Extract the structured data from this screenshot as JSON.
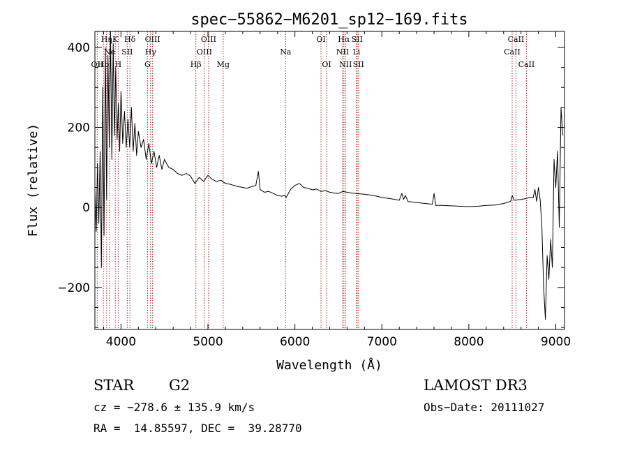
{
  "chart_data": {
    "type": "line",
    "title": "spec−55862−M6201_sp12−169.fits",
    "xlabel": "Wavelength (Å)",
    "ylabel": "Flux (relative)",
    "xlim": [
      3700,
      9100
    ],
    "ylim": [
      -305,
      440
    ],
    "xticks": [
      4000,
      5000,
      6000,
      7000,
      8000,
      9000
    ],
    "xtick_labels": [
      "4000",
      "5000",
      "6000",
      "7000",
      "8000",
      "9000"
    ],
    "yticks": [
      -200,
      0,
      200,
      400
    ],
    "ytick_labels": [
      "−200",
      "0",
      "200",
      "400"
    ],
    "series": [
      {
        "name": "flux",
        "x": [
          3700,
          3715,
          3730,
          3745,
          3760,
          3775,
          3790,
          3805,
          3820,
          3835,
          3850,
          3865,
          3880,
          3895,
          3910,
          3925,
          3940,
          3955,
          3970,
          3985,
          4000,
          4020,
          4040,
          4060,
          4080,
          4100,
          4120,
          4140,
          4160,
          4180,
          4200,
          4230,
          4260,
          4290,
          4320,
          4350,
          4380,
          4410,
          4440,
          4470,
          4500,
          4550,
          4600,
          4650,
          4700,
          4750,
          4800,
          4850,
          4900,
          4950,
          5000,
          5050,
          5100,
          5150,
          5200,
          5250,
          5300,
          5350,
          5400,
          5450,
          5500,
          5550,
          5580,
          5600,
          5650,
          5700,
          5750,
          5800,
          5850,
          5880,
          5900,
          5950,
          6000,
          6050,
          6100,
          6150,
          6200,
          6250,
          6300,
          6350,
          6400,
          6450,
          6500,
          6550,
          6600,
          6650,
          6700,
          6750,
          6800,
          6900,
          7000,
          7100,
          7200,
          7230,
          7250,
          7270,
          7300,
          7400,
          7500,
          7580,
          7600,
          7620,
          7700,
          7800,
          7900,
          8000,
          8100,
          8200,
          8300,
          8400,
          8480,
          8500,
          8520,
          8600,
          8650,
          8700,
          8740,
          8760,
          8780,
          8800,
          8820,
          8840,
          8860,
          8880,
          8900,
          8920,
          8940,
          8960,
          8980,
          9000,
          9020,
          9040,
          9060,
          9080
        ],
        "y": [
          40,
          -60,
          110,
          -40,
          140,
          -150,
          300,
          -70,
          400,
          20,
          380,
          150,
          440,
          120,
          410,
          180,
          350,
          170,
          260,
          140,
          290,
          160,
          240,
          150,
          220,
          150,
          250,
          140,
          210,
          130,
          190,
          150,
          170,
          120,
          160,
          110,
          140,
          100,
          130,
          95,
          120,
          100,
          95,
          85,
          80,
          85,
          78,
          60,
          75,
          65,
          80,
          70,
          65,
          68,
          60,
          58,
          55,
          52,
          50,
          48,
          52,
          55,
          90,
          45,
          38,
          40,
          35,
          30,
          28,
          30,
          25,
          45,
          55,
          60,
          50,
          48,
          44,
          46,
          40,
          42,
          38,
          36,
          35,
          40,
          38,
          36,
          35,
          34,
          33,
          30,
          25,
          22,
          18,
          35,
          20,
          30,
          15,
          12,
          10,
          8,
          35,
          5,
          5,
          4,
          3,
          2,
          3,
          5,
          6,
          10,
          15,
          30,
          18,
          20,
          22,
          25,
          24,
          45,
          15,
          50,
          20,
          -50,
          -200,
          -280,
          -120,
          -180,
          -80,
          -150,
          120,
          50,
          140,
          -50,
          250,
          180
        ]
      }
    ],
    "lines": [
      {
        "label": "OII",
        "wl": 3727,
        "row": 3
      },
      {
        "label": "Hη",
        "wl": 3835,
        "row": 1
      },
      {
        "label": "Hb",
        "wl": 3797,
        "row": 3
      },
      {
        "label": "Ne",
        "wl": 3869,
        "row": 2
      },
      {
        "label": "K",
        "wl": 3934,
        "row": 1
      },
      {
        "label": "H",
        "wl": 3968,
        "row": 3
      },
      {
        "label": "Hδ",
        "wl": 4102,
        "row": 1
      },
      {
        "label": "SII",
        "wl": 4072,
        "row": 2
      },
      {
        "label": "OIII",
        "wl": 4363,
        "row": 1
      },
      {
        "label": "Hγ",
        "wl": 4340,
        "row": 2
      },
      {
        "label": "G",
        "wl": 4305,
        "row": 3
      },
      {
        "label": "Hβ",
        "wl": 4861,
        "row": 3
      },
      {
        "label": "OIII",
        "wl": 5007,
        "row": 1
      },
      {
        "label": "OIII",
        "wl": 4959,
        "row": 2
      },
      {
        "label": "Mg",
        "wl": 5175,
        "row": 3
      },
      {
        "label": "Na",
        "wl": 5893,
        "row": 2
      },
      {
        "label": "OI",
        "wl": 6300,
        "row": 1
      },
      {
        "label": "OI",
        "wl": 6364,
        "row": 3
      },
      {
        "label": "Hα",
        "wl": 6563,
        "row": 1
      },
      {
        "label": "NII",
        "wl": 6548,
        "row": 2
      },
      {
        "label": "NII",
        "wl": 6583,
        "row": 3
      },
      {
        "label": "SII",
        "wl": 6716,
        "row": 1
      },
      {
        "label": "Li",
        "wl": 6708,
        "row": 2
      },
      {
        "label": "SII",
        "wl": 6731,
        "row": 3
      },
      {
        "label": "CaII",
        "wl": 8542,
        "row": 1
      },
      {
        "label": "CaII",
        "wl": 8498,
        "row": 2
      },
      {
        "label": "CaII",
        "wl": 8662,
        "row": 3
      }
    ]
  },
  "info": {
    "object_class": "STAR",
    "subclass": "G2",
    "redshift": "cz = −278.6 ± 135.9 km/s",
    "coords": "RA =  14.85597, DEC =  39.28770",
    "survey": "LAMOST DR3",
    "obs_date": "Obs−Date: 20111027"
  }
}
